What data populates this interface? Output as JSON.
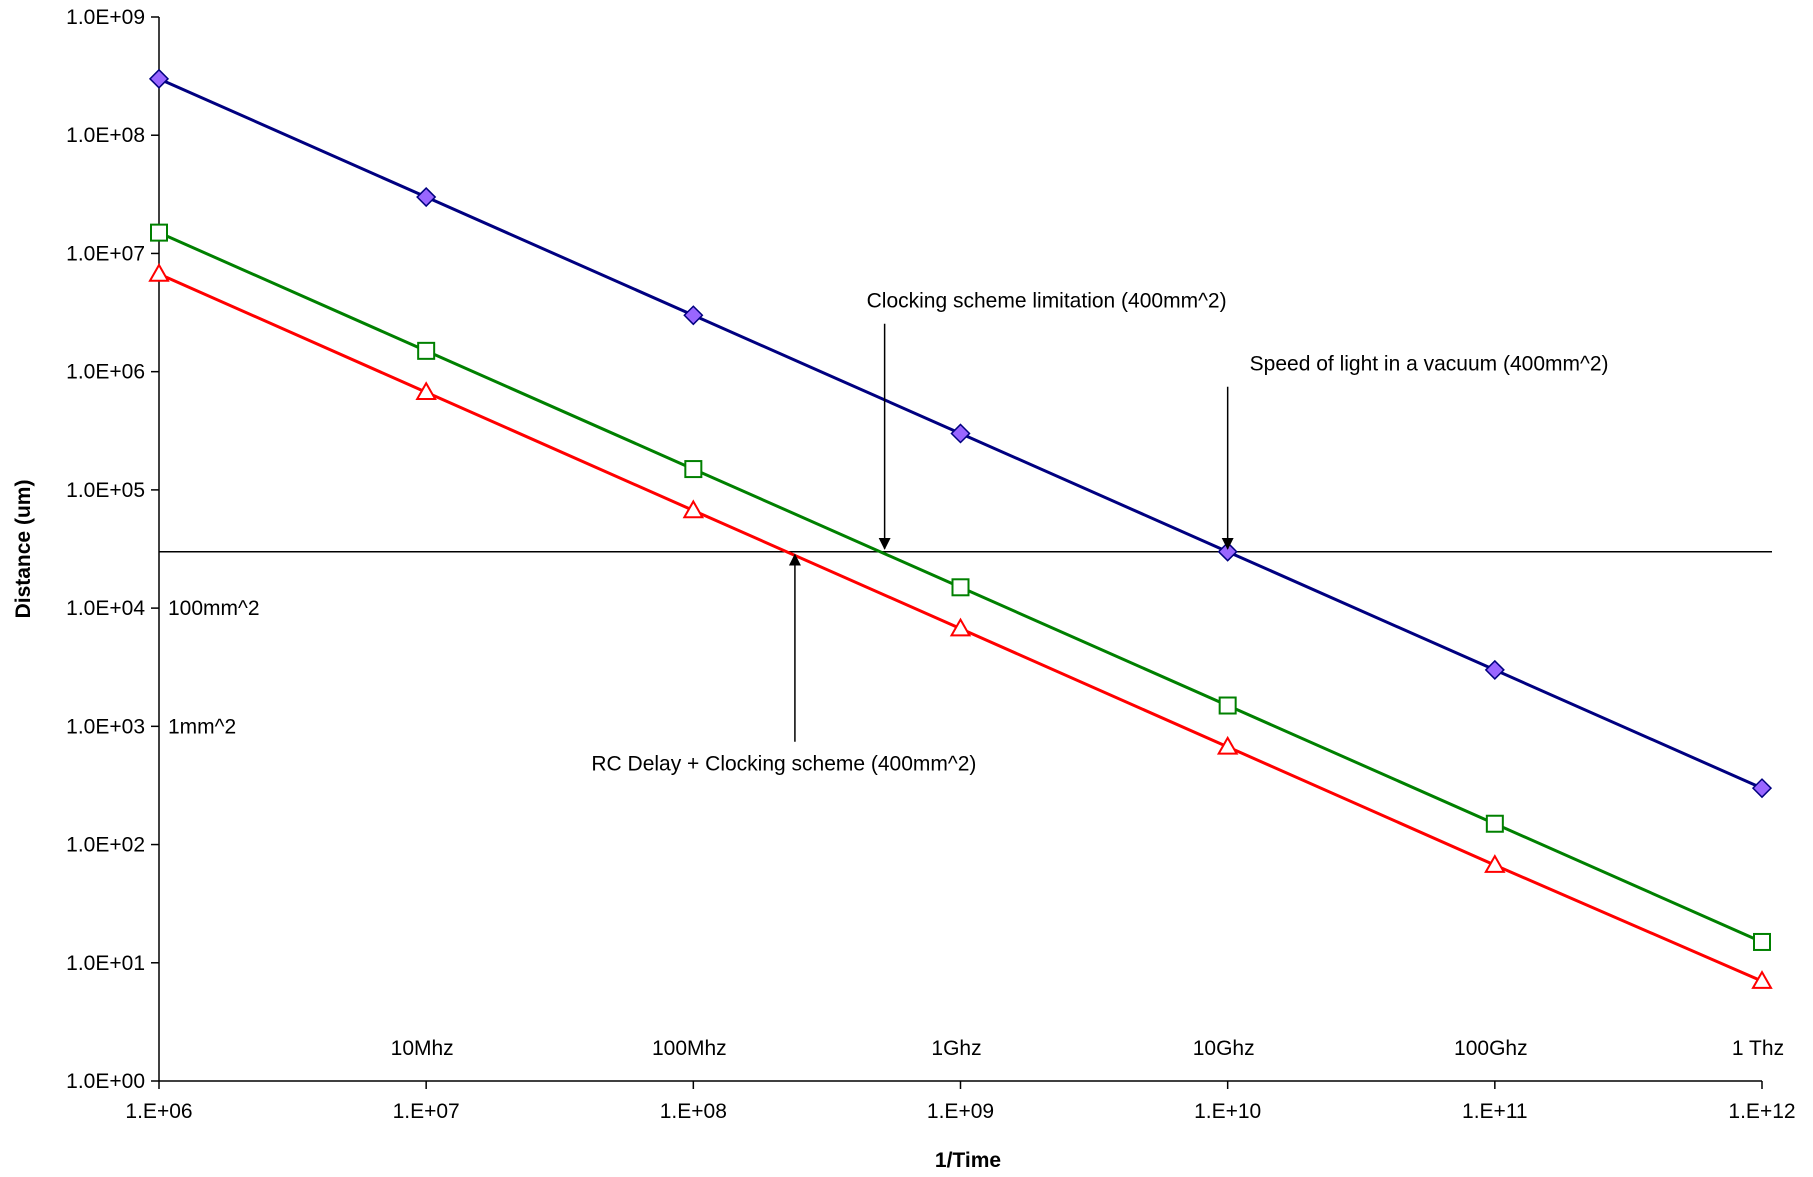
{
  "chart_data": {
    "type": "line",
    "x_scale": "log",
    "y_scale": "log",
    "xlabel": "1/Time",
    "ylabel": "Distance (um)",
    "xlim": [
      1000000,
      1000000000000
    ],
    "ylim": [
      1,
      1000000000
    ],
    "x_ticks": [
      {
        "value": 1000000,
        "label": "1.E+06"
      },
      {
        "value": 10000000,
        "label": "1.E+07"
      },
      {
        "value": 100000000,
        "label": "1.E+08"
      },
      {
        "value": 1000000000,
        "label": "1.E+09"
      },
      {
        "value": 10000000000,
        "label": "1.E+10"
      },
      {
        "value": 100000000000,
        "label": "1.E+11"
      },
      {
        "value": 1000000000000,
        "label": "1.E+12"
      }
    ],
    "y_ticks": [
      {
        "value": 1,
        "label": "1.0E+00"
      },
      {
        "value": 10,
        "label": "1.0E+01"
      },
      {
        "value": 100,
        "label": "1.0E+02"
      },
      {
        "value": 1000,
        "label": "1.0E+03"
      },
      {
        "value": 10000,
        "label": "1.0E+04"
      },
      {
        "value": 100000,
        "label": "1.0E+05"
      },
      {
        "value": 1000000,
        "label": "1.0E+06"
      },
      {
        "value": 10000000,
        "label": "1.0E+07"
      },
      {
        "value": 100000000,
        "label": "1.0E+08"
      },
      {
        "value": 1000000000,
        "label": "1.0E+09"
      }
    ],
    "frequency_labels": [
      {
        "x": 10000000,
        "text": "10Mhz"
      },
      {
        "x": 100000000,
        "text": "100Mhz"
      },
      {
        "x": 1000000000,
        "text": "1Ghz"
      },
      {
        "x": 10000000000,
        "text": "10Ghz"
      },
      {
        "x": 100000000000,
        "text": "100Ghz"
      },
      {
        "x": 1000000000000,
        "text": "1 Thz"
      }
    ],
    "series": [
      {
        "color": "#000080",
        "marker": "diamond",
        "marker_fill": "#9966ff",
        "x": [
          1000000,
          10000000,
          100000000,
          1000000000,
          10000000000,
          100000000000,
          1000000000000
        ],
        "y": [
          300000000,
          30000000,
          3000000,
          300000,
          30000,
          3000,
          300
        ]
      },
      {
        "color": "#008000",
        "marker": "square",
        "marker_fill": "#ffffff",
        "x": [
          1000000,
          10000000,
          100000000,
          1000000000,
          10000000000,
          100000000000,
          1000000000000
        ],
        "y": [
          15000000,
          1500000,
          150000,
          15000,
          1500,
          150,
          15
        ]
      },
      {
        "color": "#ff0000",
        "marker": "triangle",
        "marker_fill": "#ffffff",
        "x": [
          1000000,
          10000000,
          100000000,
          1000000000,
          10000000000,
          100000000000,
          1000000000000
        ],
        "y": [
          6700000,
          670000,
          67000,
          6700,
          670,
          67,
          7
        ]
      }
    ],
    "reference_line": {
      "y": 30000,
      "color": "#000000"
    },
    "area_labels": [
      {
        "text": "100mm^2",
        "y": 10000
      },
      {
        "text": "1mm^2",
        "y": 1000
      }
    ],
    "annotations": [
      {
        "text": "Clocking scheme limitation (400mm^2)",
        "arrow_x": 520000000,
        "arrow_y": 30000,
        "direction": "down"
      },
      {
        "text": "Speed of light in a vacuum (400mm^2)",
        "arrow_x": 10000000000,
        "arrow_y": 30000,
        "direction": "down"
      },
      {
        "text": "RC Delay + Clocking scheme (400mm^2)",
        "arrow_x": 240000000,
        "arrow_y": 30000,
        "direction": "up"
      }
    ],
    "grid": false,
    "legend": "none"
  }
}
